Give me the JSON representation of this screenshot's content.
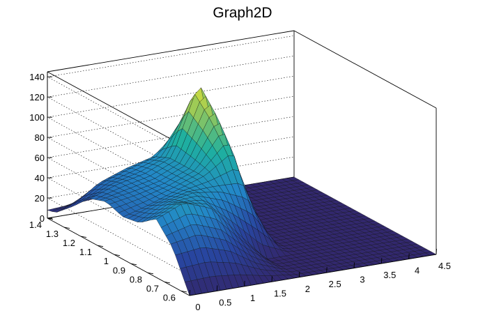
{
  "chart_data": {
    "type": "surface",
    "title": "Graph2D",
    "xlabel": "",
    "ylabel": "",
    "zlabel": "",
    "xlim": [
      0,
      4.5
    ],
    "ylim": [
      0.55,
      1.4
    ],
    "zlim": [
      0,
      145
    ],
    "x_ticks": [
      "0",
      "0.5",
      "1",
      "1.5",
      "2",
      "2.5",
      "3",
      "3.5",
      "4",
      "4.5"
    ],
    "y_ticks": [
      "0.6",
      "0.7",
      "0.8",
      "0.9",
      "1",
      "1.1",
      "1.2",
      "1.3",
      "1.4"
    ],
    "z_ticks": [
      "0",
      "20",
      "40",
      "60",
      "80",
      "100",
      "120",
      "140"
    ],
    "colormap": "viridis",
    "grid": true,
    "surface_x": [
      0,
      0.5,
      1,
      1.5,
      2,
      2.5,
      3,
      3.5,
      4,
      4.5
    ],
    "surface_y": [
      0.55,
      0.65,
      0.75,
      0.85,
      0.95,
      1.05,
      1.15,
      1.25,
      1.35,
      1.4
    ],
    "surface_z": [
      [
        0,
        0,
        0,
        0,
        0,
        0,
        0,
        0,
        0,
        0
      ],
      [
        38,
        42,
        32,
        12,
        0,
        0,
        0,
        0,
        0,
        0
      ],
      [
        58,
        70,
        60,
        30,
        0,
        0,
        0,
        0,
        0,
        0
      ],
      [
        45,
        60,
        65,
        60,
        45,
        0,
        0,
        0,
        0,
        0
      ],
      [
        42,
        50,
        60,
        70,
        90,
        0,
        0,
        0,
        0,
        0
      ],
      [
        48,
        52,
        58,
        70,
        120,
        0,
        0,
        0,
        0,
        0
      ],
      [
        42,
        52,
        58,
        70,
        142,
        0,
        0,
        0,
        0,
        0
      ],
      [
        25,
        45,
        55,
        62,
        90,
        0,
        0,
        0,
        0,
        0
      ],
      [
        10,
        20,
        30,
        40,
        20,
        0,
        0,
        0,
        0,
        0
      ],
      [
        8,
        10,
        12,
        12,
        0,
        0,
        0,
        0,
        0,
        0
      ]
    ]
  }
}
